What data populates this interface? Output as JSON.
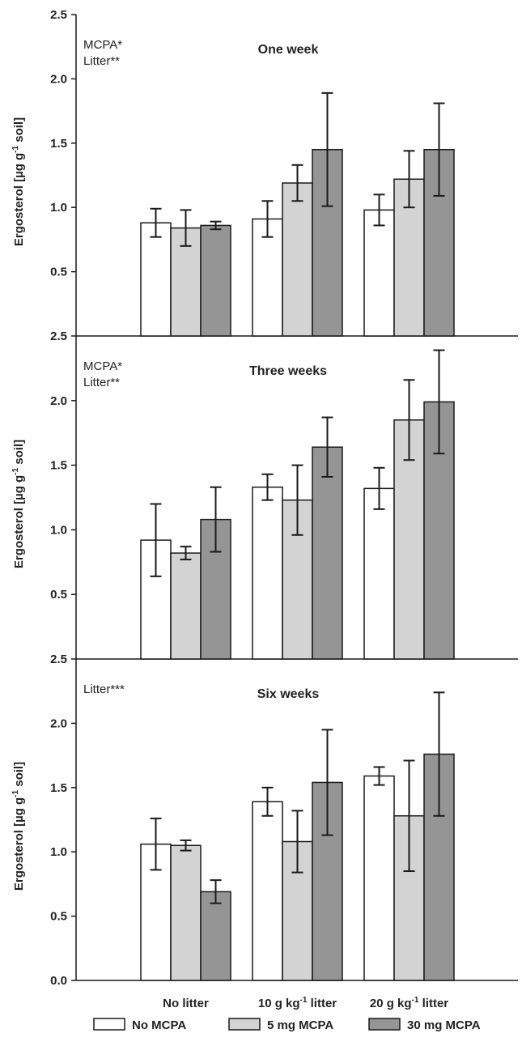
{
  "chart_data": [
    {
      "type": "bar",
      "title": "One week",
      "annotation": [
        "MCPA*",
        "Litter**"
      ],
      "ylabel": "Ergosterol [µg g-1 soil]",
      "ylim": [
        0,
        2.5
      ],
      "yticks": [
        "0.5",
        "1.0",
        "1.5",
        "2.0",
        "2.5"
      ],
      "categories": [
        "No litter",
        "10 g kg-1 litter",
        "20 g kg-1 litter"
      ],
      "series": [
        {
          "name": "No MCPA",
          "values": [
            0.88,
            0.91,
            0.98
          ],
          "errors": [
            0.11,
            0.14,
            0.12
          ]
        },
        {
          "name": "5 mg MCPA",
          "values": [
            0.84,
            1.19,
            1.22
          ],
          "errors": [
            0.14,
            0.14,
            0.22
          ]
        },
        {
          "name": "30 mg MCPA",
          "values": [
            0.86,
            1.45,
            1.45
          ],
          "errors": [
            0.03,
            0.44,
            0.36
          ]
        }
      ]
    },
    {
      "type": "bar",
      "title": "Three weeks",
      "annotation": [
        "MCPA*",
        "Litter**"
      ],
      "ylabel": "Ergosterol [µg g-1 soil]",
      "ylim": [
        0,
        2.5
      ],
      "yticks": [
        "0.5",
        "1.0",
        "1.5",
        "2.0",
        "2.5"
      ],
      "categories": [
        "No litter",
        "10 g kg-1 litter",
        "20 g kg-1 litter"
      ],
      "series": [
        {
          "name": "No MCPA",
          "values": [
            0.92,
            1.33,
            1.32
          ],
          "errors": [
            0.28,
            0.1,
            0.16
          ]
        },
        {
          "name": "5 mg MCPA",
          "values": [
            0.82,
            1.23,
            1.85
          ],
          "errors": [
            0.05,
            0.27,
            0.31
          ]
        },
        {
          "name": "30 mg MCPA",
          "values": [
            1.08,
            1.64,
            1.99
          ],
          "errors": [
            0.25,
            0.23,
            0.4
          ]
        }
      ]
    },
    {
      "type": "bar",
      "title": "Six weeks",
      "annotation": [
        "Litter***"
      ],
      "ylabel": "Ergosterol [µg g-1 soil]",
      "ylim": [
        0,
        2.5
      ],
      "yticks": [
        "0.0",
        "0.5",
        "1.0",
        "1.5",
        "2.0",
        "2.5"
      ],
      "categories": [
        "No litter",
        "10 g kg-1 litter",
        "20 g kg-1 litter"
      ],
      "series": [
        {
          "name": "No MCPA",
          "values": [
            1.06,
            1.39,
            1.59
          ],
          "errors": [
            0.2,
            0.11,
            0.07
          ]
        },
        {
          "name": "5 mg MCPA",
          "values": [
            1.05,
            1.08,
            1.28
          ],
          "errors": [
            0.04,
            0.24,
            0.43
          ]
        },
        {
          "name": "30 mg MCPA",
          "values": [
            0.69,
            1.54,
            1.76
          ],
          "errors": [
            0.09,
            0.41,
            0.48
          ]
        }
      ]
    }
  ],
  "category_labels": [
    {
      "pre": "No litter",
      "sup": "",
      "post": ""
    },
    {
      "pre": "10 g kg",
      "sup": "-1",
      "post": " litter"
    },
    {
      "pre": "20 g kg",
      "sup": "-1",
      "post": " litter"
    }
  ],
  "ylabel_parts": {
    "pre": "Ergosterol [µg g",
    "sup": "-1",
    "post": " soil]"
  },
  "legend": [
    {
      "label": "No MCPA",
      "color": "#ffffff"
    },
    {
      "label": "5 mg MCPA",
      "color": "#d3d3d3"
    },
    {
      "label": "30 mg MCPA",
      "color": "#959595"
    }
  ],
  "colors": {
    "no_mcpa": "#ffffff",
    "mcpa_5": "#d3d3d3",
    "mcpa_30": "#959595",
    "stroke": "#1a1a1a"
  }
}
